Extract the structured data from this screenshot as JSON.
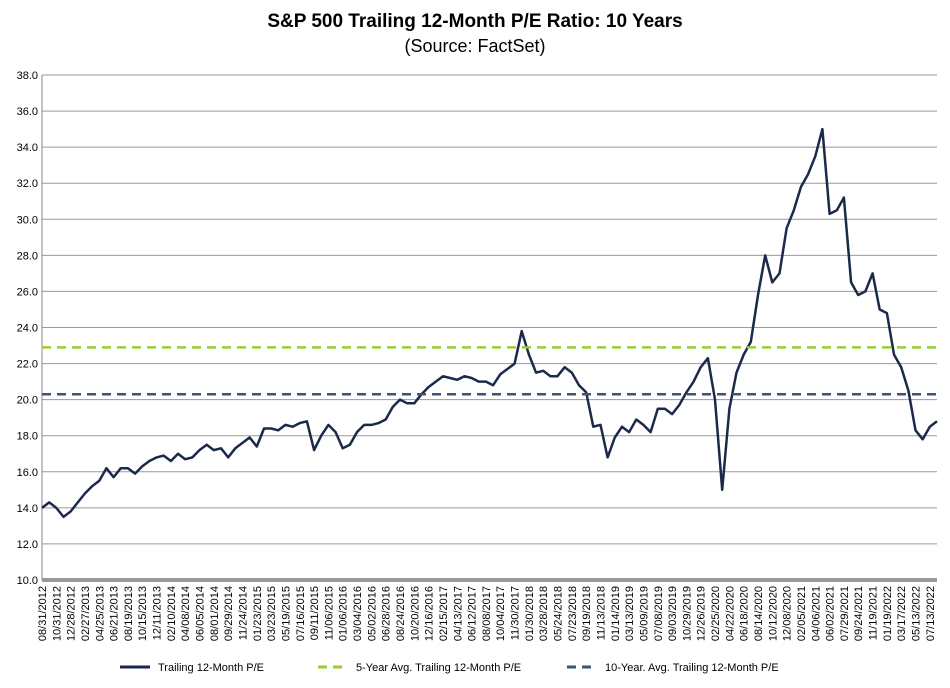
{
  "chart_data": {
    "type": "line",
    "title": "S&P 500 Trailing 12-Month P/E Ratio: 10 Years",
    "subtitle": "(Source: FactSet)",
    "categories": [
      "08/31/2012",
      null,
      "10/31/2012",
      null,
      "12/28/2012",
      null,
      "02/27/2013",
      null,
      "04/25/2013",
      null,
      "06/21/2013",
      null,
      "08/19/2013",
      null,
      "10/15/2013",
      null,
      "12/11/2013",
      null,
      "02/10/2014",
      null,
      "04/08/2014",
      null,
      "06/05/2014",
      null,
      "08/01/2014",
      null,
      "09/29/2014",
      null,
      "11/24/2014",
      null,
      "01/23/2015",
      null,
      "03/23/2015",
      null,
      "05/19/2015",
      null,
      "07/16/2015",
      null,
      "09/11/2015",
      null,
      "11/06/2015",
      null,
      "01/06/2016",
      null,
      "03/04/2016",
      null,
      "05/02/2016",
      null,
      "06/28/2016",
      null,
      "08/24/2016",
      null,
      "10/20/2016",
      null,
      "12/16/2016",
      null,
      "02/15/2017",
      null,
      "04/13/2017",
      null,
      "06/12/2017",
      null,
      "08/08/2017",
      null,
      "10/04/2017",
      null,
      "11/30/2017",
      null,
      "01/30/2018",
      null,
      "03/28/2018",
      null,
      "05/24/2018",
      null,
      "07/23/2018",
      null,
      "09/19/2018",
      null,
      "11/13/2018",
      null,
      "01/14/2019",
      null,
      "03/13/2019",
      null,
      "05/09/2019",
      null,
      "07/08/2019",
      null,
      "09/03/2019",
      null,
      "10/29/2019",
      null,
      "12/26/2019",
      null,
      "02/25/2020",
      null,
      "04/22/2020",
      null,
      "06/18/2020",
      null,
      "08/14/2020",
      null,
      "10/12/2020",
      null,
      "12/08/2020",
      null,
      "02/05/2021",
      null,
      "04/06/2021",
      null,
      "06/02/2021",
      null,
      "07/29/2021",
      null,
      "09/24/2021",
      null,
      "11/19/2021",
      null,
      "01/19/2022",
      null,
      "03/17/2022",
      null,
      "05/13/2022",
      null,
      "07/13/2022",
      null
    ],
    "series": [
      {
        "name": "Trailing 12-Month P/E",
        "color": "#1b2a4a",
        "values": [
          14.0,
          14.3,
          14.0,
          13.5,
          13.8,
          14.3,
          14.8,
          15.2,
          15.5,
          16.2,
          15.7,
          16.2,
          16.2,
          15.9,
          16.3,
          16.6,
          16.8,
          16.9,
          16.6,
          17.0,
          16.7,
          16.8,
          17.2,
          17.5,
          17.2,
          17.3,
          16.8,
          17.3,
          17.6,
          17.9,
          17.4,
          18.4,
          18.4,
          18.3,
          18.6,
          18.5,
          18.7,
          18.8,
          17.2,
          18.0,
          18.6,
          18.2,
          17.3,
          17.5,
          18.2,
          18.6,
          18.6,
          18.7,
          18.9,
          19.6,
          20.0,
          19.8,
          19.8,
          20.3,
          20.7,
          21.0,
          21.3,
          21.2,
          21.1,
          21.3,
          21.2,
          21.0,
          21.0,
          20.8,
          21.4,
          21.7,
          22.0,
          23.8,
          22.5,
          21.5,
          21.6,
          21.3,
          21.3,
          21.8,
          21.5,
          20.8,
          20.4,
          18.5,
          18.6,
          16.8,
          17.9,
          18.5,
          18.2,
          18.9,
          18.6,
          18.2,
          19.5,
          19.5,
          19.2,
          19.7,
          20.4,
          21.0,
          21.8,
          22.3,
          20.0,
          15.0,
          19.5,
          21.5,
          22.5,
          23.2,
          25.8,
          28.0,
          26.5,
          27.0,
          29.5,
          30.5,
          31.8,
          32.5,
          33.5,
          35.0,
          30.3,
          30.5,
          31.2,
          26.5,
          25.8,
          26.0,
          27.0,
          25.0,
          24.8,
          22.5,
          21.8,
          20.5,
          18.3,
          17.8,
          18.5,
          18.8
        ]
      },
      {
        "name": "5-Year Avg. Trailing 12-Month P/E",
        "color": "#9acd32",
        "value": 22.9,
        "dashed": true
      },
      {
        "name": "10-Year. Avg. Trailing 12-Month P/E",
        "color": "#3b5578",
        "value": 20.3,
        "dashed": true
      }
    ],
    "ylim": [
      10,
      38
    ],
    "yticks": [
      {
        "value": 10,
        "label": "10.0"
      },
      {
        "value": 12,
        "label": "12.0"
      },
      {
        "value": 14,
        "label": "14.0"
      },
      {
        "value": 16,
        "label": "16.0"
      },
      {
        "value": 18,
        "label": "18.0"
      },
      {
        "value": 20,
        "label": "20.0"
      },
      {
        "value": 22,
        "label": "22.0"
      },
      {
        "value": 24,
        "label": "24.0"
      },
      {
        "value": 26,
        "label": "26.0"
      },
      {
        "value": 28,
        "label": "28.0"
      },
      {
        "value": 30,
        "label": "30.0"
      },
      {
        "value": 32,
        "label": "32.0"
      },
      {
        "value": 34,
        "label": "34.0"
      },
      {
        "value": 36,
        "label": "36.0"
      },
      {
        "value": 38,
        "label": "38.0"
      }
    ],
    "grid": true,
    "legend": "bottom"
  }
}
